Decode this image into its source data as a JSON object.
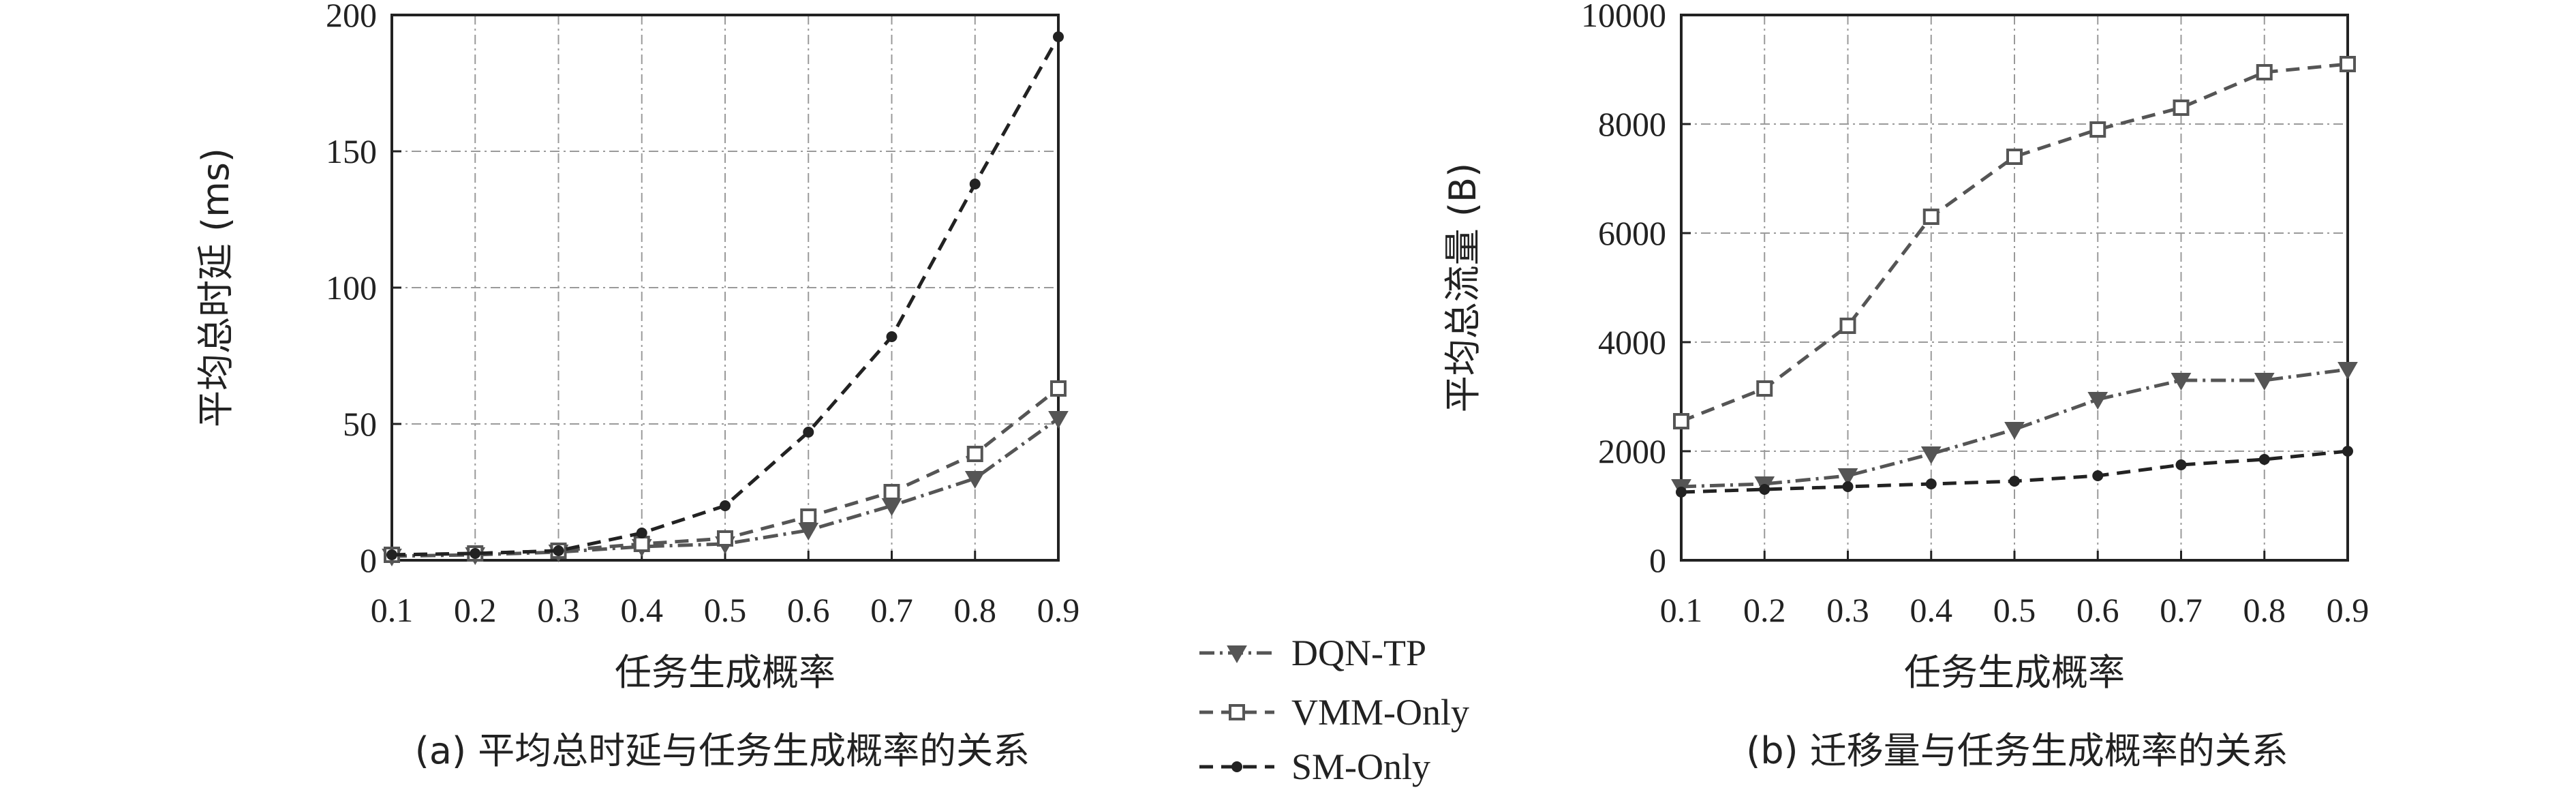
{
  "chart_data": [
    {
      "type": "line",
      "xlabel": "任务生成概率",
      "ylabel": "平均总时延 (ms)",
      "caption": "(a) 平均总时延与任务生成概率的关系",
      "x": [
        0.1,
        0.2,
        0.3,
        0.4,
        0.5,
        0.6,
        0.7,
        0.8,
        0.9
      ],
      "x_ticks": [
        "0.1",
        "0.2",
        "0.3",
        "0.4",
        "0.5",
        "0.6",
        "0.7",
        "0.8",
        "0.9"
      ],
      "y_ticks": [
        "0",
        "50",
        "100",
        "150",
        "200"
      ],
      "xlim": [
        0.1,
        0.9
      ],
      "ylim": [
        0,
        200
      ],
      "grid": true,
      "series": [
        {
          "name": "DQN-TP",
          "values": [
            1.5,
            2,
            3,
            5,
            6,
            11,
            20,
            30,
            52
          ]
        },
        {
          "name": "VMM-Only",
          "values": [
            2,
            2.5,
            3.5,
            6,
            8,
            16,
            25,
            39,
            63
          ]
        },
        {
          "name": "SM-Only",
          "values": [
            2,
            2.5,
            3.5,
            10,
            20,
            47,
            82,
            138,
            192
          ]
        }
      ]
    },
    {
      "type": "line",
      "xlabel": "任务生成概率",
      "ylabel": "平均总流量 (B)",
      "caption": "(b) 迁移量与任务生成概率的关系",
      "x": [
        0.1,
        0.2,
        0.3,
        0.4,
        0.5,
        0.6,
        0.7,
        0.8,
        0.9
      ],
      "x_ticks": [
        "0.1",
        "0.2",
        "0.3",
        "0.4",
        "0.5",
        "0.6",
        "0.7",
        "0.8",
        "0.9"
      ],
      "y_ticks": [
        "0",
        "2000",
        "4000",
        "6000",
        "8000",
        "10000"
      ],
      "xlim": [
        0.1,
        0.9
      ],
      "ylim": [
        0,
        10000
      ],
      "grid": true,
      "series": [
        {
          "name": "DQN-TP",
          "values": [
            1350,
            1400,
            1550,
            1950,
            2400,
            2950,
            3300,
            3300,
            3500
          ]
        },
        {
          "name": "VMM-Only",
          "values": [
            2550,
            3150,
            4300,
            6300,
            7400,
            7900,
            8300,
            8950,
            9100
          ]
        },
        {
          "name": "SM-Only",
          "values": [
            1250,
            1300,
            1350,
            1400,
            1450,
            1550,
            1750,
            1850,
            2000
          ]
        }
      ]
    }
  ],
  "legend": {
    "placement": "bottom-center",
    "items": [
      {
        "name": "DQN-TP",
        "marker": "triangle-down"
      },
      {
        "name": "VMM-Only",
        "marker": "square-open"
      },
      {
        "name": "SM-Only",
        "marker": "circle"
      }
    ]
  },
  "colors": {
    "DQN-TP": "#555555",
    "VMM-Only": "#555555",
    "SM-Only": "#222222",
    "grid": "#9a9a9a",
    "axis": "#222222"
  }
}
